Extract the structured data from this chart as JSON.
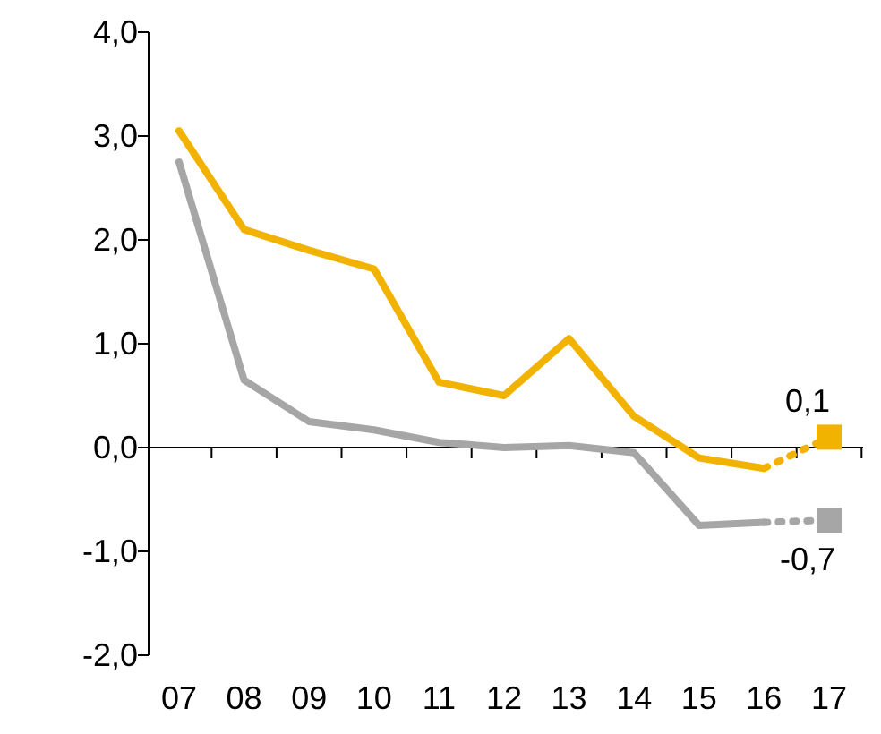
{
  "chart_data": {
    "type": "line",
    "categories": [
      "07",
      "08",
      "09",
      "10",
      "11",
      "12",
      "13",
      "14",
      "15",
      "16",
      "17"
    ],
    "ylim": [
      -2,
      4
    ],
    "yticks": [
      {
        "value": -2,
        "label": "-2,0"
      },
      {
        "value": -1,
        "label": "-1,0"
      },
      {
        "value": 0,
        "label": "0,0"
      },
      {
        "value": 1,
        "label": "1,0"
      },
      {
        "value": 2,
        "label": "2,0"
      },
      {
        "value": 3,
        "label": "3,0"
      },
      {
        "value": 4,
        "label": "4,0"
      }
    ],
    "series": [
      {
        "color": "#f2b200",
        "line_style": "solid",
        "values": [
          3.05,
          2.1,
          1.9,
          1.72,
          0.63,
          0.5,
          1.05,
          0.3,
          -0.1,
          -0.2,
          null
        ]
      },
      {
        "color": "#a6a6a6",
        "line_style": "solid",
        "values": [
          2.75,
          0.65,
          0.25,
          0.17,
          0.05,
          0.0,
          0.02,
          -0.05,
          -0.75,
          -0.72,
          null
        ]
      },
      {
        "color": "#f2b200",
        "line_style": "dotted",
        "values": [
          null,
          null,
          null,
          null,
          null,
          null,
          null,
          null,
          null,
          -0.2,
          0.1
        ]
      },
      {
        "color": "#a6a6a6",
        "line_style": "dotted",
        "values": [
          null,
          null,
          null,
          null,
          null,
          null,
          null,
          null,
          null,
          -0.72,
          -0.7
        ]
      },
      {
        "type": "scatter",
        "color": "#f2b200",
        "marker": "square",
        "values": [
          null,
          null,
          null,
          null,
          null,
          null,
          null,
          null,
          null,
          null,
          0.1
        ],
        "value_labels": [
          null,
          null,
          null,
          null,
          null,
          null,
          null,
          null,
          null,
          null,
          "0,1"
        ]
      },
      {
        "type": "scatter",
        "color": "#a6a6a6",
        "marker": "square",
        "values": [
          null,
          null,
          null,
          null,
          null,
          null,
          null,
          null,
          null,
          null,
          -0.7
        ],
        "value_labels": [
          null,
          null,
          null,
          null,
          null,
          null,
          null,
          null,
          null,
          null,
          "-0,7"
        ]
      }
    ]
  }
}
